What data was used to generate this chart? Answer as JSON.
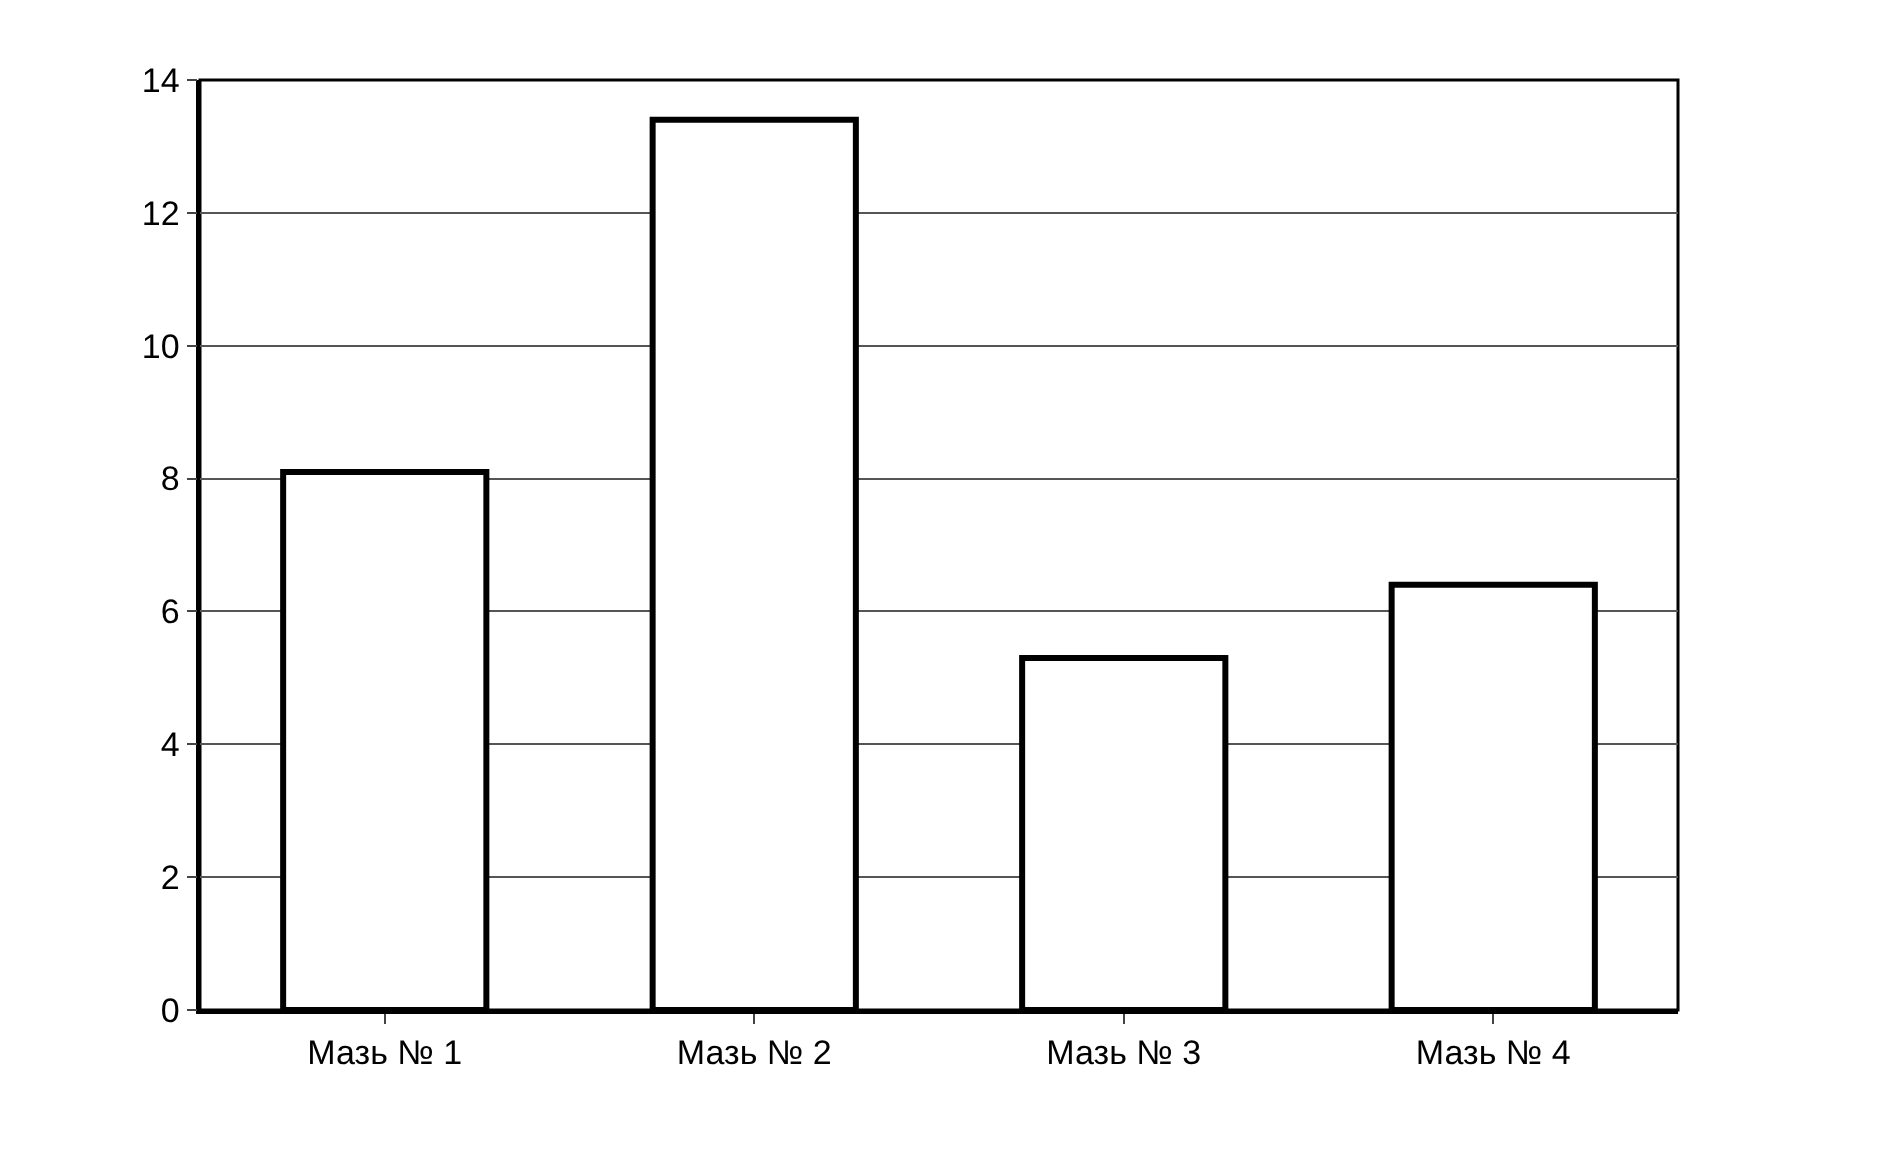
{
  "chart_data": {
    "type": "bar",
    "categories": [
      "Мазь № 1",
      "Мазь № 2",
      "Мазь № 3",
      "Мазь № 4"
    ],
    "values": [
      8.1,
      13.4,
      5.3,
      6.4
    ],
    "color": "#ffffff",
    "ylim": [
      0,
      14
    ],
    "yticks": [
      0,
      2,
      4,
      6,
      8,
      10,
      12,
      14
    ],
    "grid": "y"
  }
}
